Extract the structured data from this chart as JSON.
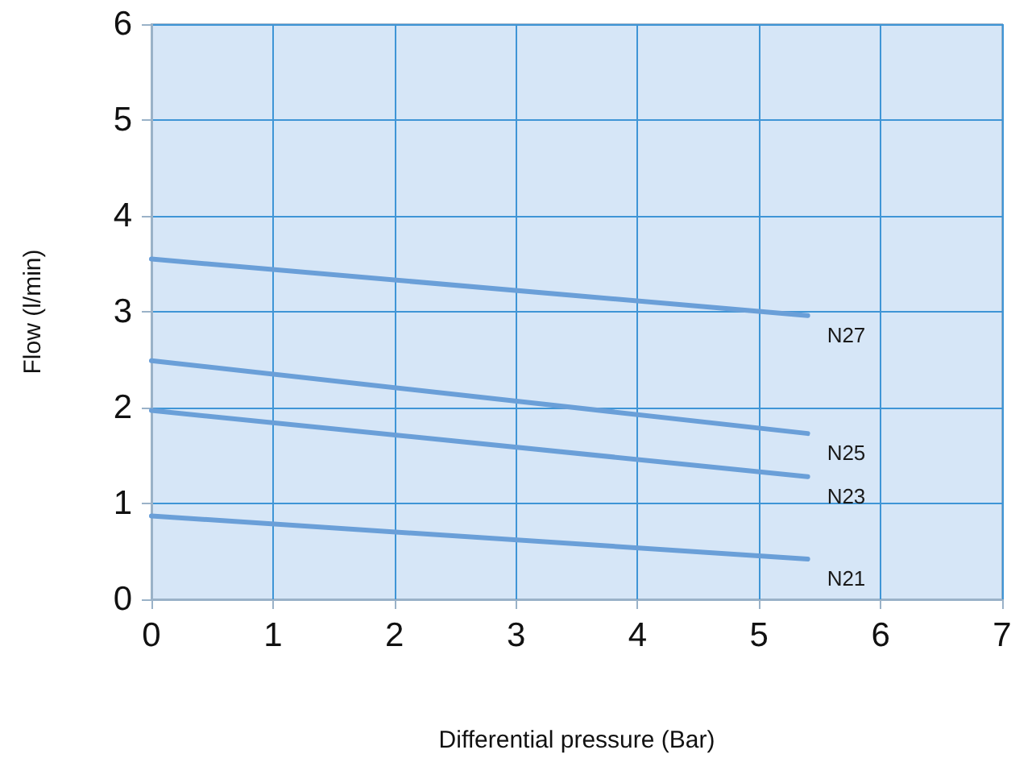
{
  "chart_data": {
    "type": "line",
    "xlabel": "Differential pressure (Bar)",
    "ylabel": "Flow (l/min)",
    "x": [
      0,
      5.4
    ],
    "series": [
      {
        "name": "N27",
        "color": "#6a9fd8",
        "values": [
          3.55,
          2.96
        ]
      },
      {
        "name": "N25",
        "color": "#6a9fd8",
        "values": [
          2.49,
          1.73
        ]
      },
      {
        "name": "N23",
        "color": "#6a9fd8",
        "values": [
          1.97,
          1.28
        ]
      },
      {
        "name": "N21",
        "color": "#6a9fd8",
        "values": [
          0.87,
          0.42
        ]
      }
    ],
    "xlim": [
      0,
      7
    ],
    "xticks": [
      0,
      1,
      2,
      3,
      4,
      5,
      6,
      7
    ],
    "ylim": [
      0,
      6
    ],
    "yticks": [
      0,
      1,
      2,
      3,
      4,
      5,
      6
    ],
    "grid": true,
    "legend": false,
    "marker": "none",
    "line_style": "solid"
  }
}
